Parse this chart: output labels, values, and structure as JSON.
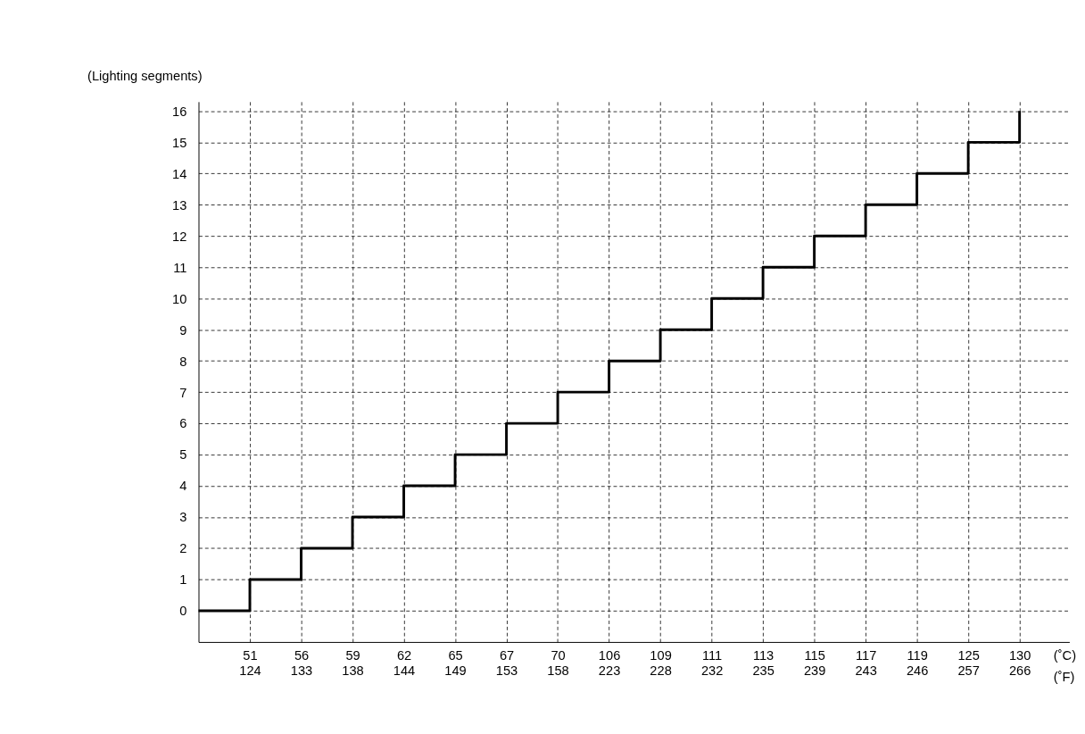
{
  "chart_data": {
    "type": "step",
    "ylabel": "(Lighting segments)",
    "xlabel": "(˚C)\n(˚F)",
    "categories": [
      null,
      "51\n124",
      "56\n133",
      "59\n138",
      "62\n144",
      "65\n149",
      "67\n153",
      "70\n158",
      "106\n223",
      "109\n228",
      "111\n232",
      "113\n235",
      "115\n239",
      "117\n243",
      "119\n246",
      "125\n257",
      "130\n266"
    ],
    "values": [
      0,
      1,
      2,
      3,
      4,
      5,
      6,
      7,
      8,
      9,
      10,
      11,
      12,
      13,
      14,
      15,
      16
    ],
    "color": "#000000",
    "ylim": [
      -1,
      16.3
    ],
    "yticks": [
      0,
      1,
      2,
      3,
      4,
      5,
      6,
      7,
      8,
      9,
      10,
      11,
      12,
      13,
      14,
      15,
      16
    ],
    "grid": true,
    "line_style": "solid"
  }
}
